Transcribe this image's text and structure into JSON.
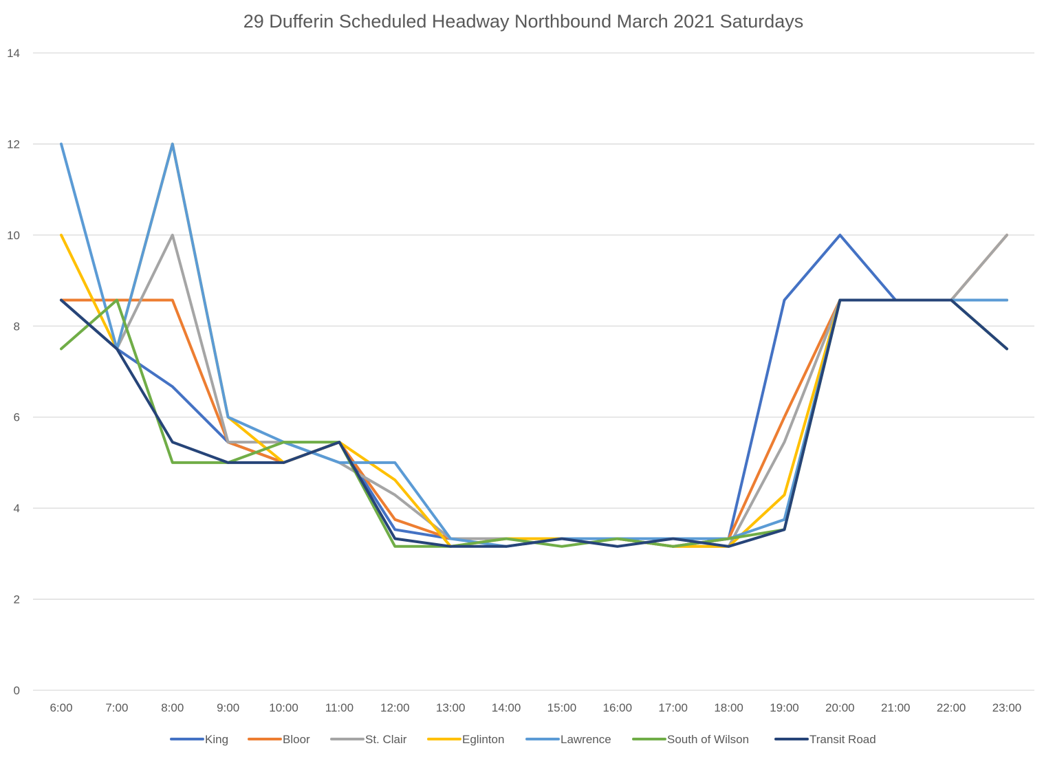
{
  "chart_data": {
    "type": "line",
    "title": "29 Dufferin  Scheduled Headway Northbound March 2021 Saturdays",
    "xlabel": "",
    "ylabel": "",
    "categories": [
      "6:00",
      "7:00",
      "8:00",
      "9:00",
      "10:00",
      "11:00",
      "12:00",
      "13:00",
      "14:00",
      "15:00",
      "16:00",
      "17:00",
      "18:00",
      "19:00",
      "20:00",
      "21:00",
      "22:00",
      "23:00"
    ],
    "ylim": [
      0,
      14
    ],
    "yticks": [
      0,
      2,
      4,
      6,
      8,
      10,
      12,
      14
    ],
    "grid": true,
    "legend_position": "bottom",
    "series": [
      {
        "name": "King",
        "color": "#4472C4",
        "values": [
          8.57,
          7.5,
          6.67,
          5.45,
          5.0,
          5.45,
          3.53,
          3.33,
          3.33,
          3.33,
          3.33,
          3.16,
          3.33,
          8.57,
          10.0,
          8.57,
          8.57,
          8.57
        ]
      },
      {
        "name": "Bloor",
        "color": "#ED7D31",
        "values": [
          8.57,
          8.57,
          8.57,
          5.45,
          5.0,
          5.45,
          3.75,
          3.33,
          3.33,
          3.33,
          3.33,
          3.16,
          3.33,
          6.0,
          8.57,
          8.57,
          8.57,
          10.0
        ]
      },
      {
        "name": "St. Clair",
        "color": "#A5A5A5",
        "values": [
          8.57,
          7.5,
          10.0,
          5.45,
          5.45,
          5.0,
          4.29,
          3.33,
          3.33,
          3.33,
          3.33,
          3.16,
          3.16,
          5.45,
          8.57,
          8.57,
          8.57,
          10.0
        ]
      },
      {
        "name": "Eglinton",
        "color": "#FFC000",
        "values": [
          10.0,
          7.5,
          12.0,
          6.0,
          5.0,
          5.45,
          4.62,
          3.16,
          3.33,
          3.33,
          3.33,
          3.16,
          3.16,
          4.29,
          8.57,
          8.57,
          8.57,
          8.57
        ]
      },
      {
        "name": "Lawrence",
        "color": "#5B9BD5",
        "values": [
          12.0,
          7.5,
          12.0,
          6.0,
          5.45,
          5.0,
          5.0,
          3.33,
          3.16,
          3.33,
          3.33,
          3.33,
          3.33,
          3.75,
          8.57,
          8.57,
          8.57,
          8.57
        ]
      },
      {
        "name": "South of Wilson",
        "color": "#70AD47",
        "values": [
          7.5,
          8.57,
          5.0,
          5.0,
          5.45,
          5.45,
          3.16,
          3.16,
          3.33,
          3.16,
          3.33,
          3.16,
          3.33,
          3.53,
          8.57,
          8.57,
          8.57,
          7.5
        ]
      },
      {
        "name": "Transit Road",
        "color": "#264478",
        "values": [
          8.57,
          7.5,
          5.45,
          5.0,
          5.0,
          5.45,
          3.33,
          3.16,
          3.16,
          3.33,
          3.16,
          3.33,
          3.16,
          3.53,
          8.57,
          8.57,
          8.57,
          7.5
        ]
      }
    ]
  }
}
